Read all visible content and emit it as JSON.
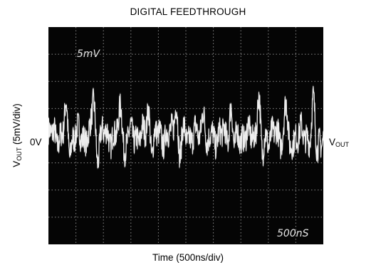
{
  "chart_data": {
    "type": "line",
    "title": "DIGITAL FEEDTHROUGH",
    "xlabel": "Time (500ns/div)",
    "ylabel": {
      "main": "V",
      "sub": "OUT",
      "rest": " (5mV/div)"
    },
    "zero_label": "0V",
    "trace_label": {
      "main": "V",
      "sub": "OUT"
    },
    "scope_annotations": {
      "vertical": "5mV",
      "horizontal": "500nS"
    },
    "divisions": {
      "x": 10,
      "y": 8
    },
    "x_range_ns": [
      0,
      5000
    ],
    "y_range_mV": [
      -20,
      20
    ],
    "signal": {
      "baseline_mV": 0,
      "noise_pp_mV": 5,
      "spike_peak_mV": 6,
      "spike_times_ns": [
        320,
        820,
        1320,
        1820,
        2320,
        2820,
        3320,
        3820,
        4320,
        4820
      ]
    },
    "grid": true,
    "colors": {
      "background": "#050505",
      "trace": "#f2f2f2",
      "grid": "#8a8a8a"
    }
  }
}
